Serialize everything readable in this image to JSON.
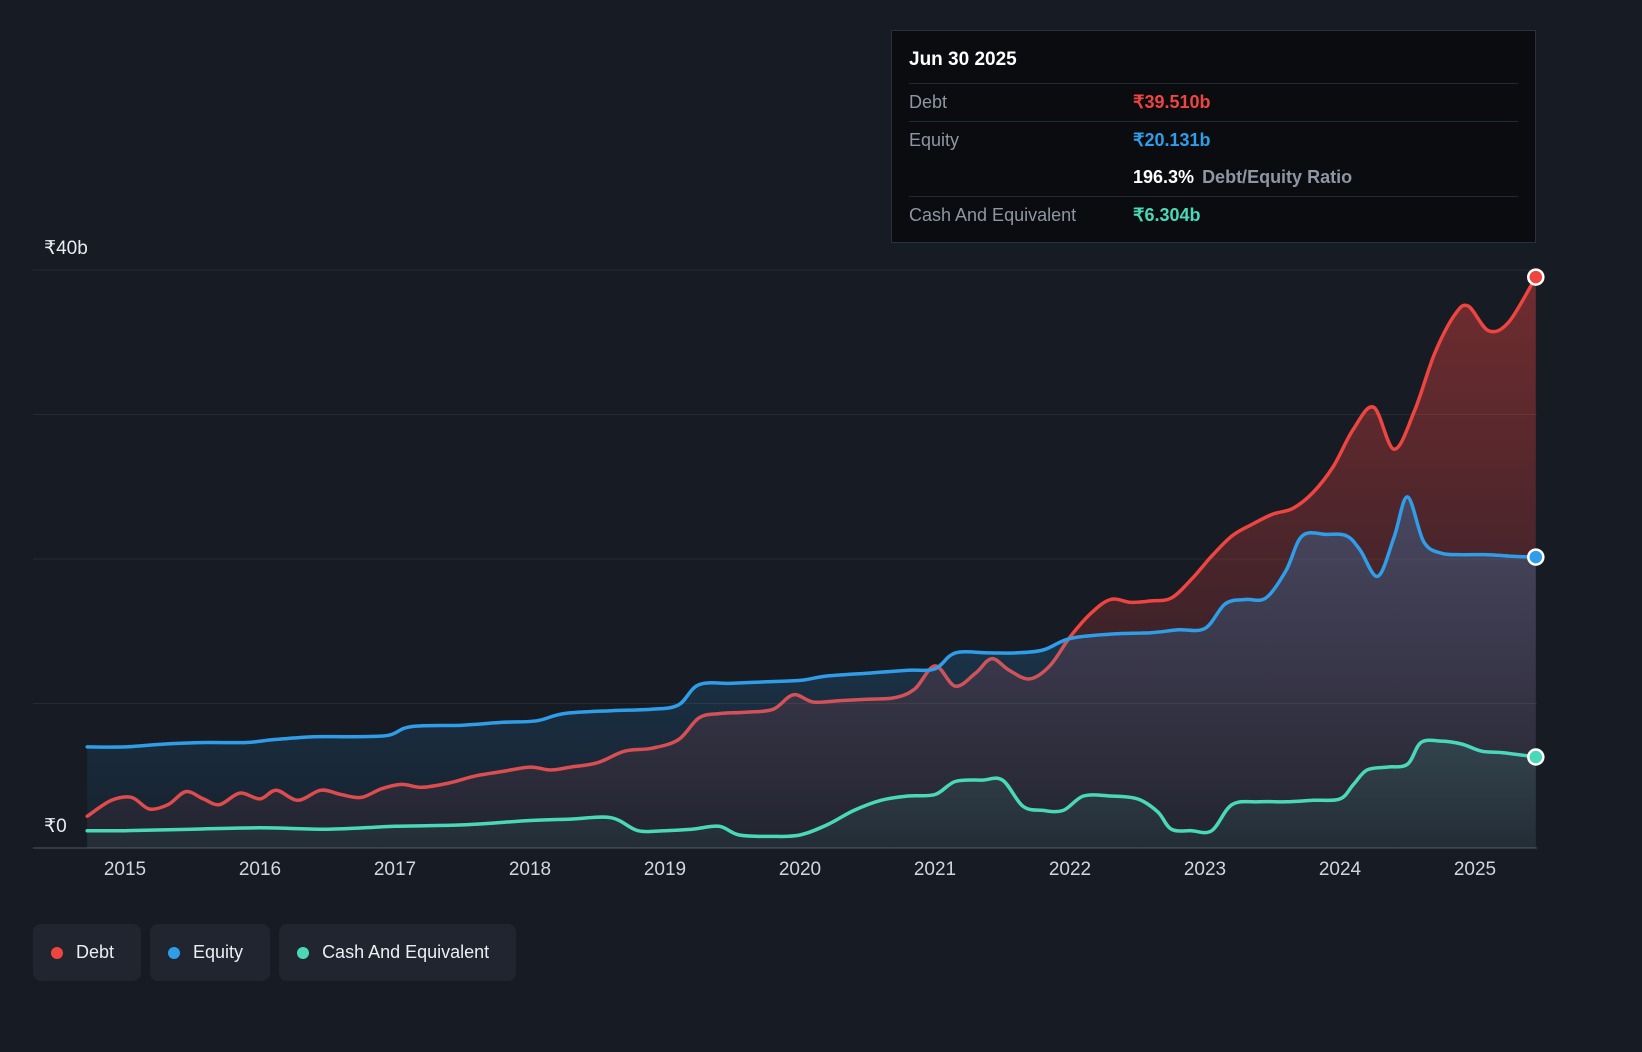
{
  "tooltip": {
    "date": "Jun 30 2025",
    "debt_label": "Debt",
    "debt_value": "₹39.510b",
    "equity_label": "Equity",
    "equity_value": "₹20.131b",
    "ratio_value": "196.3%",
    "ratio_text": "Debt/Equity Ratio",
    "cash_label": "Cash And Equivalent",
    "cash_value": "₹6.304b"
  },
  "legend": {
    "items": [
      {
        "label": "Debt",
        "color": "#ee4540"
      },
      {
        "label": "Equity",
        "color": "#2f9de8"
      },
      {
        "label": "Cash And Equivalent",
        "color": "#4ad9b8"
      }
    ]
  },
  "chart_data": {
    "type": "area",
    "xlim": [
      2014.72,
      2025.47
    ],
    "ylim": [
      0,
      40
    ],
    "grid": true,
    "gridline_values": [
      0,
      10,
      20,
      30,
      40
    ],
    "y_ticks": [
      {
        "value": 40,
        "label": "₹40b"
      },
      {
        "value": 0,
        "label": "₹0"
      }
    ],
    "x_ticks": [
      2015,
      2016,
      2017,
      2018,
      2019,
      2020,
      2021,
      2022,
      2023,
      2024,
      2025
    ],
    "series": [
      {
        "name": "Debt",
        "color": "#ee4540",
        "points": [
          [
            2014.72,
            2.2
          ],
          [
            2014.9,
            3.3
          ],
          [
            2015.05,
            3.5
          ],
          [
            2015.18,
            2.7
          ],
          [
            2015.32,
            3.0
          ],
          [
            2015.45,
            3.9
          ],
          [
            2015.58,
            3.4
          ],
          [
            2015.7,
            3.0
          ],
          [
            2015.85,
            3.8
          ],
          [
            2016.0,
            3.4
          ],
          [
            2016.12,
            4.0
          ],
          [
            2016.28,
            3.3
          ],
          [
            2016.45,
            4.0
          ],
          [
            2016.6,
            3.7
          ],
          [
            2016.75,
            3.5
          ],
          [
            2016.9,
            4.1
          ],
          [
            2017.05,
            4.4
          ],
          [
            2017.2,
            4.2
          ],
          [
            2017.4,
            4.5
          ],
          [
            2017.6,
            5.0
          ],
          [
            2017.8,
            5.3
          ],
          [
            2018.0,
            5.6
          ],
          [
            2018.15,
            5.4
          ],
          [
            2018.3,
            5.6
          ],
          [
            2018.5,
            5.9
          ],
          [
            2018.7,
            6.7
          ],
          [
            2018.9,
            6.9
          ],
          [
            2019.1,
            7.5
          ],
          [
            2019.25,
            9.0
          ],
          [
            2019.4,
            9.3
          ],
          [
            2019.6,
            9.4
          ],
          [
            2019.8,
            9.6
          ],
          [
            2019.95,
            10.6
          ],
          [
            2020.1,
            10.1
          ],
          [
            2020.3,
            10.2
          ],
          [
            2020.5,
            10.3
          ],
          [
            2020.7,
            10.4
          ],
          [
            2020.85,
            11.0
          ],
          [
            2021.0,
            12.6
          ],
          [
            2021.15,
            11.2
          ],
          [
            2021.3,
            12.1
          ],
          [
            2021.42,
            13.1
          ],
          [
            2021.55,
            12.3
          ],
          [
            2021.7,
            11.7
          ],
          [
            2021.85,
            12.6
          ],
          [
            2022.0,
            14.6
          ],
          [
            2022.15,
            16.2
          ],
          [
            2022.3,
            17.2
          ],
          [
            2022.45,
            17.0
          ],
          [
            2022.6,
            17.1
          ],
          [
            2022.75,
            17.3
          ],
          [
            2022.9,
            18.6
          ],
          [
            2023.05,
            20.2
          ],
          [
            2023.2,
            21.6
          ],
          [
            2023.35,
            22.4
          ],
          [
            2023.5,
            23.1
          ],
          [
            2023.65,
            23.5
          ],
          [
            2023.8,
            24.6
          ],
          [
            2023.95,
            26.4
          ],
          [
            2024.1,
            29.0
          ],
          [
            2024.25,
            30.5
          ],
          [
            2024.4,
            27.6
          ],
          [
            2024.55,
            30.2
          ],
          [
            2024.7,
            34.2
          ],
          [
            2024.85,
            36.9
          ],
          [
            2024.95,
            37.5
          ],
          [
            2025.1,
            35.8
          ],
          [
            2025.25,
            36.4
          ],
          [
            2025.45,
            39.51
          ]
        ]
      },
      {
        "name": "Equity",
        "color": "#2f9de8",
        "points": [
          [
            2014.72,
            7.0
          ],
          [
            2015.0,
            7.0
          ],
          [
            2015.3,
            7.2
          ],
          [
            2015.6,
            7.3
          ],
          [
            2015.9,
            7.3
          ],
          [
            2016.1,
            7.5
          ],
          [
            2016.4,
            7.7
          ],
          [
            2016.7,
            7.7
          ],
          [
            2016.95,
            7.8
          ],
          [
            2017.12,
            8.4
          ],
          [
            2017.5,
            8.5
          ],
          [
            2017.8,
            8.7
          ],
          [
            2018.05,
            8.8
          ],
          [
            2018.25,
            9.3
          ],
          [
            2018.6,
            9.5
          ],
          [
            2018.9,
            9.6
          ],
          [
            2019.1,
            9.9
          ],
          [
            2019.25,
            11.3
          ],
          [
            2019.5,
            11.4
          ],
          [
            2019.75,
            11.5
          ],
          [
            2020.0,
            11.6
          ],
          [
            2020.2,
            11.9
          ],
          [
            2020.5,
            12.1
          ],
          [
            2020.8,
            12.3
          ],
          [
            2021.0,
            12.4
          ],
          [
            2021.15,
            13.5
          ],
          [
            2021.4,
            13.5
          ],
          [
            2021.6,
            13.5
          ],
          [
            2021.8,
            13.7
          ],
          [
            2022.0,
            14.5
          ],
          [
            2022.3,
            14.8
          ],
          [
            2022.6,
            14.9
          ],
          [
            2022.8,
            15.1
          ],
          [
            2023.0,
            15.2
          ],
          [
            2023.15,
            16.9
          ],
          [
            2023.3,
            17.2
          ],
          [
            2023.45,
            17.3
          ],
          [
            2023.6,
            19.2
          ],
          [
            2023.72,
            21.6
          ],
          [
            2023.9,
            21.7
          ],
          [
            2024.05,
            21.6
          ],
          [
            2024.15,
            20.6
          ],
          [
            2024.28,
            18.8
          ],
          [
            2024.4,
            21.5
          ],
          [
            2024.5,
            24.3
          ],
          [
            2024.62,
            21.2
          ],
          [
            2024.75,
            20.4
          ],
          [
            2024.9,
            20.3
          ],
          [
            2025.1,
            20.3
          ],
          [
            2025.25,
            20.2
          ],
          [
            2025.45,
            20.13
          ]
        ]
      },
      {
        "name": "Cash And Equivalent",
        "color": "#4ad9b8",
        "points": [
          [
            2014.72,
            1.2
          ],
          [
            2015.0,
            1.2
          ],
          [
            2015.5,
            1.3
          ],
          [
            2016.0,
            1.4
          ],
          [
            2016.5,
            1.3
          ],
          [
            2017.0,
            1.5
          ],
          [
            2017.5,
            1.6
          ],
          [
            2018.0,
            1.9
          ],
          [
            2018.3,
            2.0
          ],
          [
            2018.6,
            2.1
          ],
          [
            2018.8,
            1.2
          ],
          [
            2019.0,
            1.2
          ],
          [
            2019.2,
            1.3
          ],
          [
            2019.4,
            1.5
          ],
          [
            2019.55,
            0.9
          ],
          [
            2019.8,
            0.8
          ],
          [
            2020.0,
            0.9
          ],
          [
            2020.2,
            1.6
          ],
          [
            2020.4,
            2.6
          ],
          [
            2020.6,
            3.3
          ],
          [
            2020.8,
            3.6
          ],
          [
            2021.0,
            3.7
          ],
          [
            2021.15,
            4.6
          ],
          [
            2021.35,
            4.7
          ],
          [
            2021.5,
            4.7
          ],
          [
            2021.65,
            2.9
          ],
          [
            2021.8,
            2.6
          ],
          [
            2021.95,
            2.6
          ],
          [
            2022.1,
            3.6
          ],
          [
            2022.3,
            3.6
          ],
          [
            2022.5,
            3.4
          ],
          [
            2022.65,
            2.5
          ],
          [
            2022.75,
            1.3
          ],
          [
            2022.9,
            1.2
          ],
          [
            2023.05,
            1.2
          ],
          [
            2023.2,
            3.0
          ],
          [
            2023.4,
            3.2
          ],
          [
            2023.6,
            3.2
          ],
          [
            2023.8,
            3.3
          ],
          [
            2024.0,
            3.4
          ],
          [
            2024.1,
            4.4
          ],
          [
            2024.2,
            5.4
          ],
          [
            2024.35,
            5.6
          ],
          [
            2024.5,
            5.8
          ],
          [
            2024.6,
            7.3
          ],
          [
            2024.75,
            7.4
          ],
          [
            2024.9,
            7.2
          ],
          [
            2025.05,
            6.7
          ],
          [
            2025.2,
            6.6
          ],
          [
            2025.45,
            6.3
          ]
        ]
      }
    ]
  }
}
